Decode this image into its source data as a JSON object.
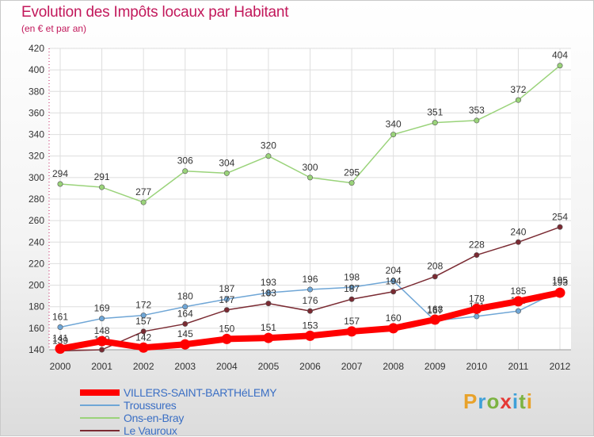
{
  "header": {
    "title": "Evolution des Impôts locaux par Habitant",
    "subtitle": "(en € et par an)"
  },
  "logo": {
    "text": "Proxiti",
    "colors": [
      "#e8a22a",
      "#3ea0d8",
      "#7cb342",
      "#e53935",
      "#3ea0d8",
      "#7cb342",
      "#e8a22a"
    ]
  },
  "chart_data": {
    "type": "line",
    "title": "Evolution des Impôts locaux par Habitant",
    "subtitle": "(en € et par an)",
    "xlabel": "",
    "ylabel": "",
    "x": [
      "2000",
      "2001",
      "2002",
      "2003",
      "2004",
      "2005",
      "2006",
      "2007",
      "2008",
      "2009",
      "2010",
      "2011",
      "2012"
    ],
    "ylim": [
      140,
      420
    ],
    "yticks": [
      140,
      160,
      180,
      200,
      220,
      240,
      260,
      280,
      300,
      320,
      340,
      360,
      380,
      400,
      420
    ],
    "grid": true,
    "legend_position": "bottom-left",
    "series": [
      {
        "name": "VILLERS-SAINT-BARTHéLEMY",
        "color": "#ff0000",
        "values": [
          141,
          148,
          142,
          145,
          150,
          151,
          153,
          157,
          160,
          168,
          178,
          185,
          193
        ],
        "labels": [
          "141",
          "148",
          "142",
          "145",
          "150",
          "151",
          "153",
          "157",
          "160",
          "168",
          "178",
          "185",
          "193"
        ]
      },
      {
        "name": "Troussures",
        "color": "#6fa6d6",
        "values": [
          161,
          169,
          172,
          180,
          187,
          193,
          196,
          198,
          204,
          167,
          171,
          176,
          195
        ],
        "labels": [
          "161",
          "169",
          "172",
          "180",
          "187",
          "193",
          "196",
          "198",
          "204",
          "167",
          "171",
          "176",
          "195"
        ]
      },
      {
        "name": "Ons-en-Bray",
        "color": "#9ad37a",
        "values": [
          294,
          291,
          277,
          306,
          304,
          320,
          300,
          295,
          340,
          351,
          353,
          372,
          404
        ],
        "labels": [
          "294",
          "291",
          "277",
          "306",
          "304",
          "320",
          "300",
          "295",
          "340",
          "351",
          "353",
          "372",
          "404"
        ]
      },
      {
        "name": "Le Vauroux",
        "color": "#7a2a32",
        "values": [
          139,
          140,
          157,
          164,
          177,
          183,
          176,
          187,
          194,
          208,
          228,
          240,
          254
        ],
        "labels": [
          "139",
          "140",
          "157",
          "164",
          "177",
          "183",
          "176",
          "187",
          "194",
          "208",
          "228",
          "240",
          "254"
        ]
      }
    ]
  }
}
